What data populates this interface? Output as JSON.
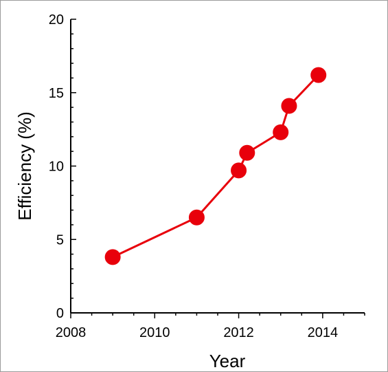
{
  "chart_data": {
    "type": "line",
    "xlabel": "Year",
    "ylabel": "Efficiency (%)",
    "xlim": [
      2008,
      2015
    ],
    "ylim": [
      0,
      20
    ],
    "x_ticks": [
      2008,
      2010,
      2012,
      2014
    ],
    "y_ticks": [
      0,
      5,
      10,
      15,
      20
    ],
    "grid": false,
    "series": [
      {
        "color": "#e8000b",
        "x": [
          2009.0,
          2011.0,
          2012.0,
          2012.2,
          2013.0,
          2013.2,
          2013.9
        ],
        "y": [
          3.8,
          6.5,
          9.7,
          10.9,
          12.3,
          14.1,
          16.2
        ]
      }
    ]
  }
}
